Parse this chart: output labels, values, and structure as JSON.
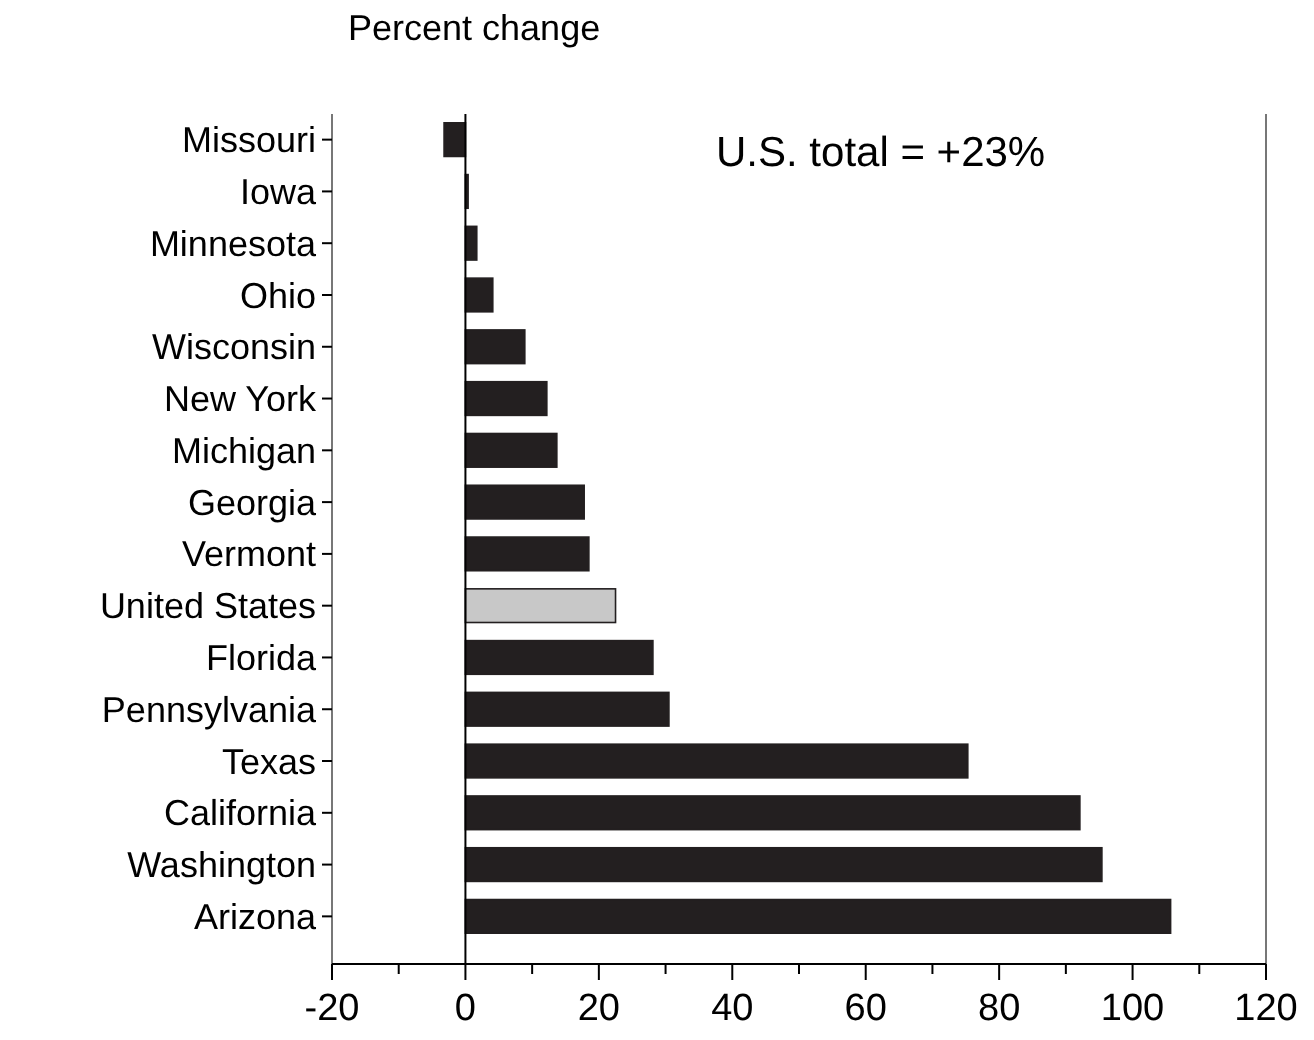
{
  "chart_data": {
    "type": "bar",
    "orientation": "horizontal",
    "xlabel": "Percent change",
    "categories": [
      "Missouri",
      "Iowa",
      "Minnesota",
      "Ohio",
      "Wisconsin",
      "New York",
      "Michigan",
      "Georgia",
      "Vermont",
      "United States",
      "Florida",
      "Pennsylvania",
      "Texas",
      "California",
      "Washington",
      "Arizona"
    ],
    "values": [
      -3.2,
      0.4,
      1.7,
      4.1,
      8.9,
      12.2,
      13.7,
      17.8,
      18.5,
      22.5,
      28.1,
      30.5,
      75.3,
      92.1,
      95.4,
      105.7
    ],
    "colors": [
      "#231f20",
      "#231f20",
      "#231f20",
      "#231f20",
      "#231f20",
      "#231f20",
      "#231f20",
      "#231f20",
      "#231f20",
      "#c8c8c8",
      "#231f20",
      "#231f20",
      "#231f20",
      "#231f20",
      "#231f20",
      "#231f20"
    ],
    "xlim": [
      -20,
      120
    ],
    "xticks": [
      -20,
      {
        "value": -10,
        "label": null
      },
      0,
      {
        "value": 10,
        "label": null
      },
      20,
      {
        "value": 30,
        "label": null
      },
      40,
      {
        "value": 50,
        "label": null
      },
      60,
      {
        "value": 70,
        "label": null
      },
      80,
      {
        "value": 90,
        "label": null
      },
      100,
      {
        "value": 110,
        "label": null
      },
      120
    ],
    "annotations": [
      "U.S. total = +23%"
    ]
  }
}
